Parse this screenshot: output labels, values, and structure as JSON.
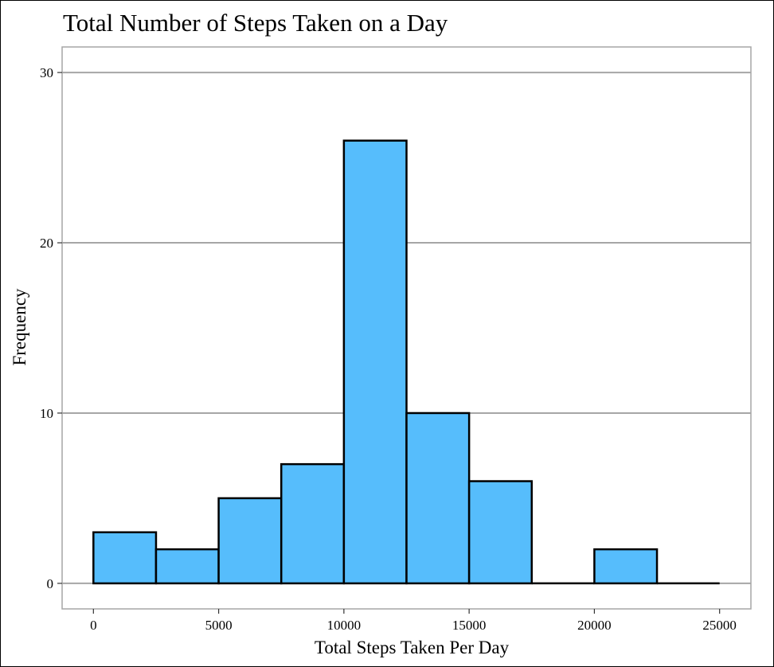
{
  "chart_data": {
    "type": "bar",
    "histogram": true,
    "title": "Total Number of Steps Taken on a Day",
    "xlabel": "Total Steps Taken Per Day",
    "ylabel": "Frequency",
    "bin_edges": [
      0,
      2500,
      5000,
      7500,
      10000,
      12500,
      15000,
      17500,
      20000,
      22500,
      25000
    ],
    "values": [
      3,
      2,
      5,
      7,
      26,
      10,
      6,
      0,
      2,
      0
    ],
    "xlim": [
      -1250,
      26250
    ],
    "ylim": [
      -1.5,
      31.5
    ],
    "x_ticks": [
      0,
      5000,
      10000,
      15000,
      20000,
      25000
    ],
    "y_ticks": [
      0,
      10,
      20,
      30
    ],
    "grid": "horizontal",
    "legend": "none",
    "colors": {
      "bar_fill": "#56bdfc",
      "bar_stroke": "#000000",
      "grid": "#a6a6a6",
      "panel_border": "#a6a6a6"
    }
  }
}
